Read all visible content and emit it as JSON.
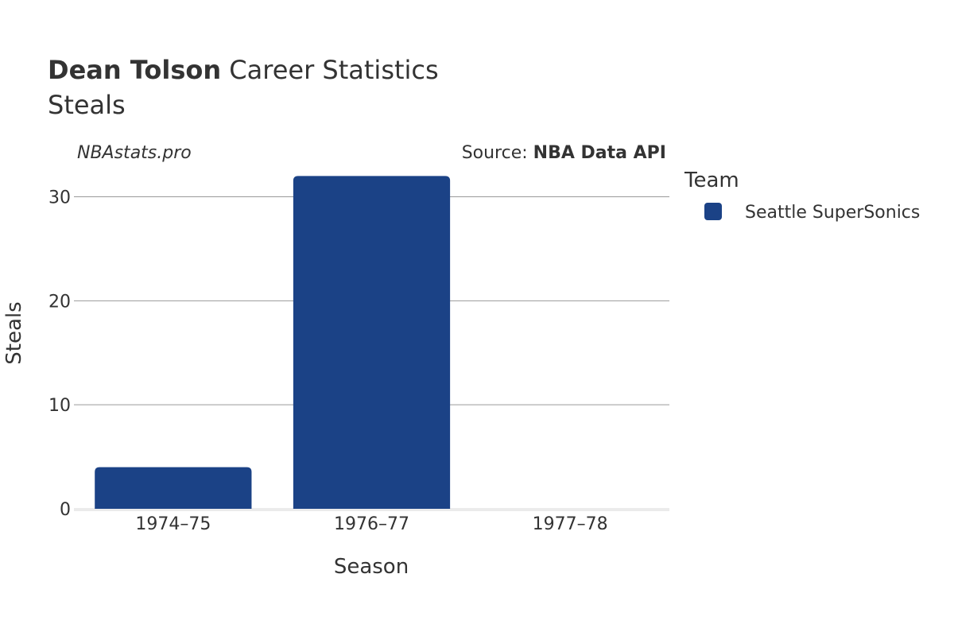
{
  "header": {
    "title_bold": "Dean Tolson",
    "title_rest": " Career Statistics",
    "subtitle": "Steals"
  },
  "watermark": "NBAstats.pro",
  "source": {
    "prefix": "Source: ",
    "name": "NBA Data API"
  },
  "legend": {
    "title": "Team",
    "items": [
      {
        "label": "Seattle SuperSonics",
        "color": "#1b4286"
      }
    ]
  },
  "chart_data": {
    "type": "bar",
    "categories": [
      "1974–75",
      "1976–77",
      "1977–78"
    ],
    "series": [
      {
        "name": "Seattle SuperSonics",
        "values": [
          4,
          32,
          0
        ],
        "color": "#1b4286"
      }
    ],
    "xlabel": "Season",
    "ylabel": "Steals",
    "ylim": [
      0,
      32
    ],
    "yticks": [
      0,
      10,
      20,
      30
    ],
    "grid": true,
    "legend_position": "right"
  }
}
